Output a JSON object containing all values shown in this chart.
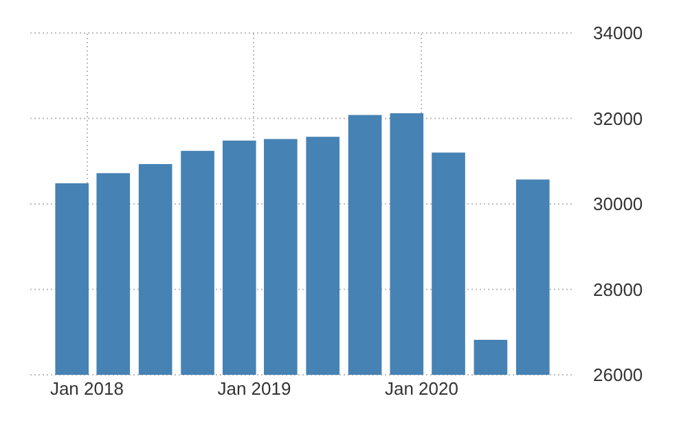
{
  "chart_data": {
    "type": "bar",
    "x": [
      "2017-12",
      "2018-03",
      "2018-06",
      "2018-09",
      "2018-12",
      "2019-03",
      "2019-06",
      "2019-09",
      "2019-12",
      "2020-03",
      "2020-06",
      "2020-09"
    ],
    "values": [
      30480,
      30720,
      30930,
      31240,
      31480,
      31520,
      31570,
      32080,
      32120,
      31200,
      26820,
      30570
    ],
    "color": "#4682b4",
    "xlim": [
      "2017-09",
      "2020-12"
    ],
    "xticks": [
      {
        "value": "2018-01",
        "label": "Jan 2018"
      },
      {
        "value": "2019-01",
        "label": "Jan 2019"
      },
      {
        "value": "2020-01",
        "label": "Jan 2020"
      }
    ],
    "ylim": [
      26000,
      34000
    ],
    "yticks": [
      26000,
      28000,
      30000,
      32000,
      34000
    ],
    "grid": true
  }
}
